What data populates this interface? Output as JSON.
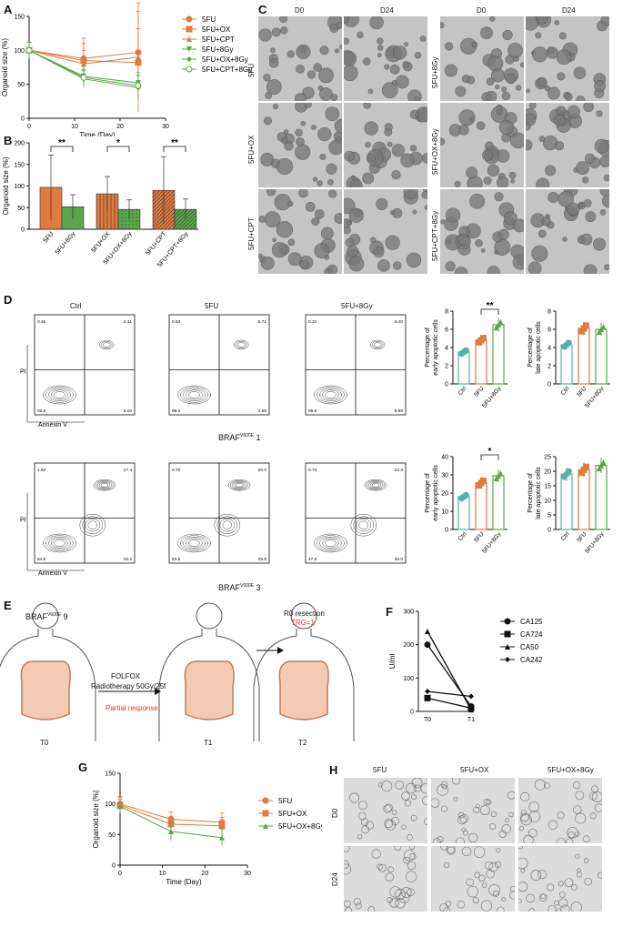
{
  "panels": {
    "A": "A",
    "B": "B",
    "C": "C",
    "D": "D",
    "E": "E",
    "F": "F",
    "G": "G",
    "H": "H"
  },
  "chart_data": [
    {
      "id": "A",
      "type": "line",
      "ylabel": "Organoid size (%)",
      "xlabel": "Time (Day)",
      "x": [
        0,
        12,
        24
      ],
      "xlim": [
        0,
        30
      ],
      "xticks": [
        0,
        10,
        20,
        30
      ],
      "ylim": [
        0,
        150
      ],
      "yticks": [
        0,
        50,
        100,
        150
      ],
      "series": [
        {
          "name": "5FU",
          "values": [
            100,
            88,
            97
          ],
          "err": [
            12,
            30,
            60
          ],
          "color": "#e07a3e",
          "marker": "circle-filled"
        },
        {
          "name": "5FU+OX",
          "values": [
            100,
            85,
            82
          ],
          "err": [
            12,
            25,
            50
          ],
          "color": "#e07a3e",
          "marker": "square-filled"
        },
        {
          "name": "5FU+CPT",
          "values": [
            100,
            80,
            90
          ],
          "err": [
            12,
            20,
            80
          ],
          "color": "#e07a3e",
          "marker": "triangle-filled"
        },
        {
          "name": "5FU+8Gy",
          "values": [
            100,
            62,
            52
          ],
          "err": [
            12,
            15,
            15
          ],
          "color": "#5aa64a",
          "marker": "triangle-down-filled"
        },
        {
          "name": "5FU+OX+8Gy",
          "values": [
            100,
            58,
            45
          ],
          "err": [
            12,
            12,
            18
          ],
          "color": "#5aa64a",
          "marker": "diamond-filled"
        },
        {
          "name": "5FU+CPT+8Gy",
          "values": [
            100,
            60,
            48
          ],
          "err": [
            12,
            12,
            15
          ],
          "color": "#5aa64a",
          "marker": "circle-open"
        }
      ]
    },
    {
      "id": "B",
      "type": "bar",
      "ylabel": "Organoid size (%)",
      "ylim": [
        0,
        200
      ],
      "yticks": [
        0,
        50,
        100,
        150,
        200
      ],
      "categories": [
        "5FU",
        "5FU+8Gy",
        "5FU+OX",
        "5FU+OX+8Gy",
        "5FU+CPT",
        "5FU+CPT+8Gy"
      ],
      "values": [
        97,
        52,
        82,
        46,
        90,
        46
      ],
      "err": [
        75,
        28,
        40,
        22,
        78,
        24
      ],
      "colors": [
        "#e07a3e",
        "#5aa64a",
        "#e07a3e",
        "#5aa64a",
        "#e07a3e",
        "#5aa64a"
      ],
      "significance": [
        "**",
        "*",
        "**"
      ]
    },
    {
      "id": "D1",
      "type": "bar",
      "ylabel": "Percentage of early apoptotic cells",
      "categories": [
        "Ctrl",
        "5FU",
        "5FU+8Gy"
      ],
      "values": [
        3.5,
        4.8,
        6.5
      ],
      "ylim": [
        0,
        8
      ],
      "yticks": [
        0,
        2,
        4,
        6,
        8
      ],
      "colors": [
        "#5ab0a8",
        "#e07a3e",
        "#5aa64a"
      ],
      "significance": "**"
    },
    {
      "id": "D2",
      "type": "bar",
      "ylabel": "Percentage of late apoptotic cells",
      "categories": [
        "Ctrl",
        "5FU",
        "5FU+8Gy"
      ],
      "values": [
        4.3,
        6.1,
        6.0
      ],
      "ylim": [
        0,
        8
      ],
      "yticks": [
        0,
        2,
        4,
        6,
        8
      ],
      "colors": [
        "#5ab0a8",
        "#e07a3e",
        "#5aa64a"
      ]
    },
    {
      "id": "D3",
      "type": "bar",
      "ylabel": "Percentage of early apoptotic cells",
      "categories": [
        "Ctrl",
        "5FU",
        "5FU+8Gy"
      ],
      "values": [
        18,
        25.5,
        29.5
      ],
      "ylim": [
        0,
        40
      ],
      "yticks": [
        0,
        10,
        20,
        30,
        40
      ],
      "colors": [
        "#5ab0a8",
        "#e07a3e",
        "#5aa64a"
      ],
      "significance": "*"
    },
    {
      "id": "D4",
      "type": "bar",
      "ylabel": "Percentage of late apoptotic cells",
      "categories": [
        "Ctrl",
        "5FU",
        "5FU+8Gy"
      ],
      "values": [
        19,
        20.5,
        22
      ],
      "ylim": [
        0,
        25
      ],
      "yticks": [
        0,
        5,
        10,
        15,
        20,
        25
      ],
      "colors": [
        "#5ab0a8",
        "#e07a3e",
        "#5aa64a"
      ]
    },
    {
      "id": "F",
      "type": "line",
      "ylabel": "U/ml",
      "x": [
        "T0",
        "T1"
      ],
      "ylim": [
        0,
        300
      ],
      "yticks": [
        0,
        100,
        200,
        300
      ],
      "series": [
        {
          "name": "CA125",
          "values": [
            200,
            15
          ],
          "marker": "circle"
        },
        {
          "name": "CA724",
          "values": [
            40,
            10
          ],
          "marker": "square"
        },
        {
          "name": "CA50",
          "values": [
            240,
            5
          ],
          "marker": "triangle"
        },
        {
          "name": "CA242",
          "values": [
            60,
            45
          ],
          "marker": "diamond"
        }
      ]
    },
    {
      "id": "G",
      "type": "line",
      "ylabel": "Organoid size (%)",
      "xlabel": "Time (Day)",
      "x": [
        0,
        12,
        24
      ],
      "xlim": [
        0,
        30
      ],
      "xticks": [
        0,
        10,
        20,
        30
      ],
      "ylim": [
        0,
        150
      ],
      "yticks": [
        0,
        50,
        100,
        150
      ],
      "series": [
        {
          "name": "5FU",
          "values": [
            100,
            75,
            70
          ],
          "err": [
            12,
            12,
            15
          ],
          "color": "#e07a3e",
          "marker": "circle"
        },
        {
          "name": "5FU+OX",
          "values": [
            98,
            67,
            64
          ],
          "err": [
            12,
            12,
            14
          ],
          "color": "#e07a3e",
          "marker": "square"
        },
        {
          "name": "5FU+OX+8Gy",
          "values": [
            96,
            55,
            45
          ],
          "err": [
            12,
            15,
            14
          ],
          "color": "#5aa64a",
          "marker": "triangle"
        }
      ]
    }
  ],
  "C": {
    "col_headers": [
      "D0",
      "D24",
      "D0",
      "D24"
    ],
    "row_labels_left": [
      "5FU",
      "5FU+OX",
      "5FU+CPT"
    ],
    "row_labels_right": [
      "5FU+8Gy",
      "5FU+OX+8Gy",
      "5FU+CPT+8Gy"
    ]
  },
  "D": {
    "col_headers": [
      "Ctrl",
      "5FU",
      "5FU+8Gy"
    ],
    "sample1": "BRAF",
    "sample1_sup": "V600E",
    "sample1_num": " 1",
    "sample2": "BRAF",
    "sample2_sup": "V600E",
    "sample2_num": " 3",
    "axis_y": "PI",
    "axis_x": "Annexin V",
    "quad_row1": [
      [
        "0.46",
        "4.41",
        "92.0",
        "3.10"
      ],
      [
        "0.63",
        "5.71",
        "89.1",
        "4.55"
      ],
      [
        "0.31",
        "6.40",
        "86.6",
        "6.69"
      ]
    ],
    "quad_row2": [
      [
        "1.62",
        "17.4",
        "64.8",
        "16.2"
      ],
      [
        "0.70",
        "20.0",
        "53.6",
        "25.6"
      ],
      [
        "0.74",
        "22.3",
        "47.0",
        "30.0"
      ]
    ]
  },
  "E": {
    "title": "BRAF",
    "title_sup": "V600E",
    "title_num": " 9",
    "treatment1": "FOLFOX",
    "treatment2": "Radiotherapy 50Gy/25f",
    "response": "Partial response",
    "resection": "R0 resection",
    "trg": "TRG=1",
    "timepoints": [
      "T0",
      "T1",
      "T2"
    ]
  },
  "H": {
    "col_headers": [
      "5FU",
      "5FU+OX",
      "5FU+OX+8Gy"
    ],
    "row_labels": [
      "D0",
      "D24"
    ]
  }
}
